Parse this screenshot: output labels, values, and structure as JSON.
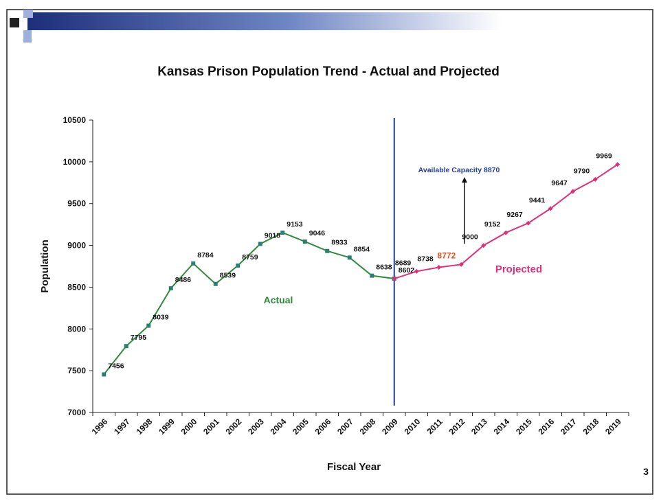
{
  "chart_data": {
    "type": "line",
    "title": "Kansas Prison Population Trend - Actual and Projected",
    "xlabel": "Fiscal Year",
    "ylabel": "Population",
    "categories": [
      "1996",
      "1997",
      "1998",
      "1999",
      "2000",
      "2001",
      "2002",
      "2003",
      "2004",
      "2005",
      "2006",
      "2007",
      "2008",
      "2009",
      "2010",
      "2011",
      "2012",
      "2013",
      "2014",
      "2015",
      "2016",
      "2017",
      "2018",
      "2019"
    ],
    "series": [
      {
        "name": "Actual",
        "color": "#2e8b3a",
        "marker_color": "#2a7f6f",
        "values": [
          7456,
          7795,
          8039,
          8486,
          8784,
          8539,
          8759,
          9018,
          9153,
          9046,
          8933,
          8854,
          8638,
          8602,
          null,
          null,
          null,
          null,
          null,
          null,
          null,
          null,
          null,
          null
        ]
      },
      {
        "name": "Projected",
        "color": "#e0307a",
        "marker_color": "#e0307a",
        "values": [
          null,
          null,
          null,
          null,
          null,
          null,
          null,
          null,
          null,
          null,
          null,
          null,
          null,
          8602,
          8689,
          8738,
          8772,
          9000,
          9152,
          9267,
          9441,
          9647,
          9790,
          9969
        ],
        "value_labels": [
          null,
          null,
          null,
          null,
          null,
          null,
          null,
          null,
          null,
          null,
          null,
          null,
          null,
          null,
          "8689",
          "8738",
          "8772",
          "9000",
          "9152",
          "9267",
          "9441",
          "9647",
          "9790",
          "9969"
        ],
        "highlight": {
          "index": 16,
          "color": "#e8501e"
        }
      }
    ],
    "ylim": [
      7000,
      10500
    ],
    "yticks": [
      7000,
      7500,
      8000,
      8500,
      9000,
      9500,
      10000,
      10500
    ],
    "divider_index": 13,
    "annotation": "Available Capacity 8870",
    "page_number": "3"
  }
}
